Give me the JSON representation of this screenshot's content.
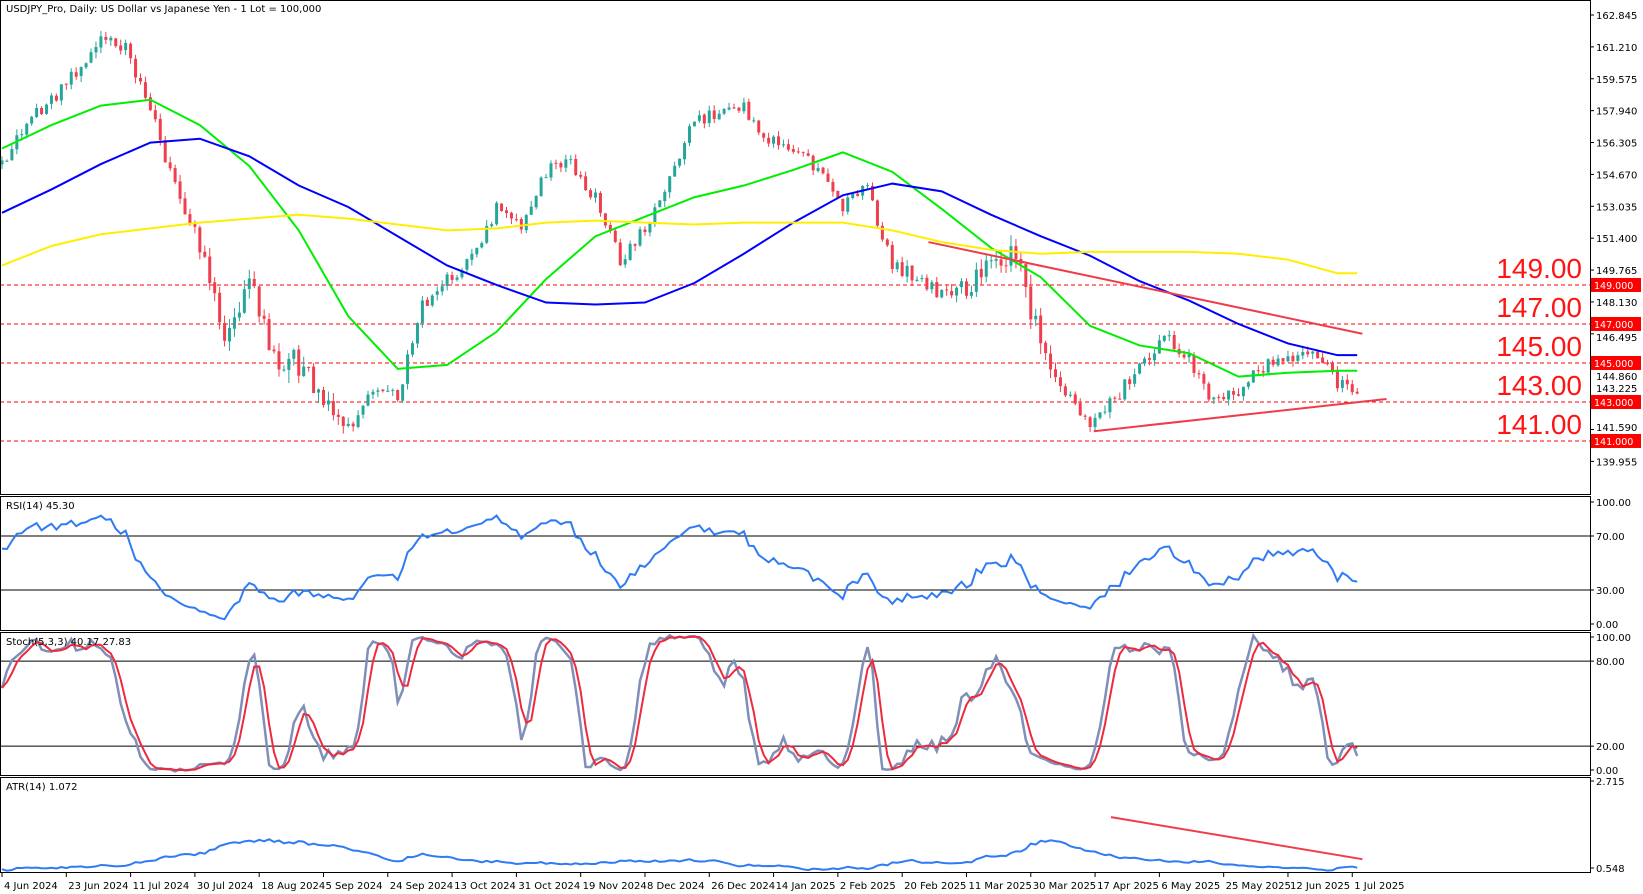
{
  "header": {
    "title": "USDJPY_Pro, Daily:  US Dollar vs Japanese Yen - 1 Lot = 100,000"
  },
  "colors": {
    "bull": "#26a69a",
    "bear": "#ef3f4d",
    "level": "#ff0000",
    "trendline": "#f03c4a",
    "rsi": "#2f7bf5",
    "stoch_main": "#7f8fb8",
    "stoch_signal": "#ee2a3e",
    "atr": "#2f7bf5"
  },
  "chart_data": [
    {
      "type": "candlestick",
      "title": "USDJPY_Pro, Daily:  US Dollar vs Japanese Yen - 1 Lot = 100,000",
      "x_start": "2024-06-04",
      "close_interval": "1 week",
      "weekly_closes": [
        155.3,
        157.2,
        158.5,
        160.0,
        161.4,
        161.3,
        158.0,
        154.0,
        151.0,
        146.4,
        149.0,
        145.6,
        145.0,
        143.2,
        141.5,
        143.5,
        143.3,
        148.0,
        149.3,
        150.3,
        153.0,
        152.1,
        154.8,
        155.2,
        153.5,
        150.2,
        152.0,
        154.5,
        157.5,
        157.7,
        158.0,
        156.5,
        155.8,
        155.0,
        153.0,
        154.0,
        150.0,
        149.4,
        148.5,
        148.8,
        150.0,
        150.8,
        146.0,
        143.5,
        141.8,
        143.2,
        144.8,
        146.5,
        145.2,
        143.0,
        143.5,
        144.8,
        145.0,
        145.8,
        144.0,
        143.7
      ],
      "moving_averages": [
        {
          "color": "#00ee00",
          "interval": "2 weeks",
          "values": [
            156.0,
            157.2,
            158.2,
            158.5,
            157.2,
            155.1,
            151.8,
            147.4,
            144.7,
            144.9,
            146.6,
            149.3,
            151.5,
            152.5,
            153.5,
            154.1,
            154.9,
            155.8,
            154.8,
            152.9,
            150.9,
            149.4,
            146.9,
            145.9,
            145.5,
            144.3,
            144.5,
            144.6
          ]
        },
        {
          "color": "#0000ff",
          "interval": "2 weeks",
          "values": [
            152.7,
            153.9,
            155.2,
            156.3,
            156.5,
            155.6,
            154.1,
            153.0,
            151.5,
            150.0,
            149.0,
            148.1,
            148.0,
            148.1,
            149.1,
            150.6,
            152.2,
            153.6,
            154.2,
            153.8,
            152.6,
            151.5,
            150.5,
            149.2,
            148.2,
            147.0,
            146.0,
            145.4
          ]
        },
        {
          "color": "#ffee00",
          "interval": "2 weeks",
          "values": [
            150.0,
            151.0,
            151.6,
            151.9,
            152.2,
            152.4,
            152.6,
            152.4,
            152.1,
            151.8,
            151.9,
            152.2,
            152.3,
            152.2,
            152.1,
            152.2,
            152.2,
            152.2,
            151.8,
            151.2,
            150.8,
            150.6,
            150.7,
            150.7,
            150.7,
            150.6,
            150.3,
            149.6
          ]
        }
      ],
      "levels": [
        {
          "value": 149.0,
          "label": "149.00",
          "tag": "149.000"
        },
        {
          "value": 147.0,
          "label": "147.00",
          "tag": "147.000"
        },
        {
          "value": 145.0,
          "label": "145.00",
          "tag": "145.000"
        },
        {
          "value": 143.0,
          "label": "143.00",
          "tag": "143.000"
        },
        {
          "value": 141.0,
          "label": "141.00",
          "tag": "141.000"
        }
      ],
      "trendlines": [
        {
          "from": [
            "2025-02-28",
            151.2
          ],
          "to": [
            "2025-07-04",
            146.5
          ]
        },
        {
          "from": [
            "2025-04-17",
            141.5
          ],
          "to": [
            "2025-07-11",
            143.15
          ]
        }
      ],
      "yticks": [
        "162.845",
        "161.210",
        "159.575",
        "157.940",
        "156.305",
        "154.670",
        "153.035",
        "151.400",
        "149.765",
        "148.130",
        "146.495",
        "144.860",
        "143.225",
        "141.590",
        "139.955"
      ],
      "xticks": [
        "4 Jun 2024",
        "23 Jun 2024",
        "11 Jul 2024",
        "30 Jul 2024",
        "18 Aug 2024",
        "5 Sep 2024",
        "24 Sep 2024",
        "13 Oct 2024",
        "31 Oct 2024",
        "19 Nov 2024",
        "8 Dec 2024",
        "26 Dec 2024",
        "14 Jan 2025",
        "2 Feb 2025",
        "20 Feb 2025",
        "11 Mar 2025",
        "30 Mar 2025",
        "17 Apr 2025",
        "6 May 2025",
        "25 May 2025",
        "12 Jun 2025",
        "1 Jul 2025"
      ]
    },
    {
      "type": "line",
      "label": "RSI(14) 45.30",
      "yticks": [
        "100.00",
        "70.00",
        "30.00",
        "0.00"
      ],
      "levels": [
        70,
        30
      ]
    },
    {
      "type": "line",
      "label": "Stoch(5,3,3) 40.17 27.83",
      "yticks": [
        "100.00",
        "80.00",
        "20.00",
        "0.00"
      ],
      "levels": [
        80,
        20
      ]
    },
    {
      "type": "line",
      "label": "ATR(14) 1.072",
      "yticks": [
        "2.715",
        "0.548"
      ],
      "trendline": {
        "from": [
          "2025-04-22",
          1.8
        ],
        "to": [
          "2025-07-04",
          0.84
        ]
      }
    }
  ]
}
